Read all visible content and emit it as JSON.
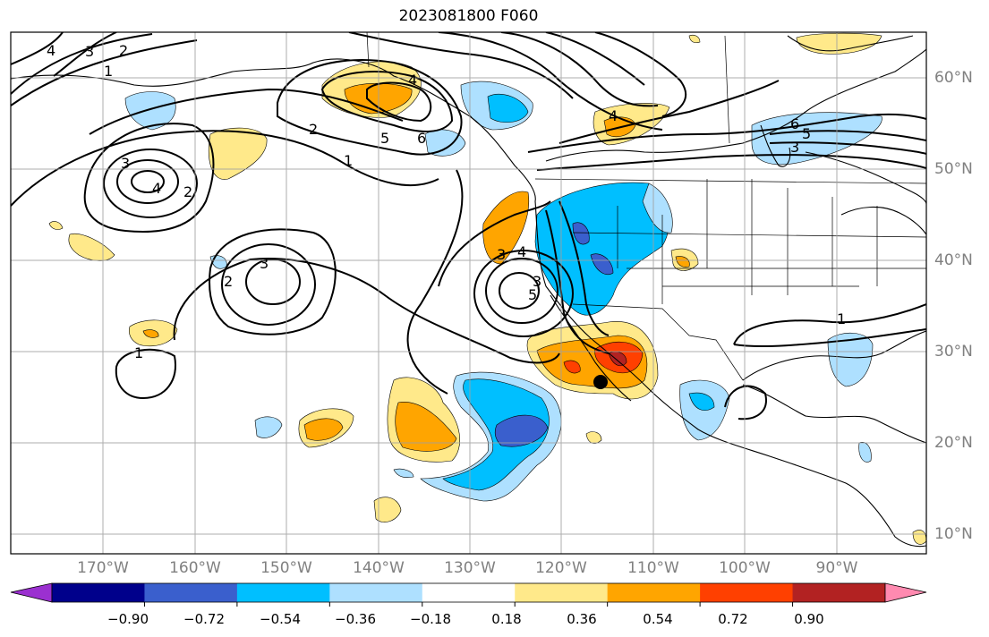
{
  "title": "2023081800 F060",
  "lon_labels": [
    "170°W",
    "160°W",
    "150°W",
    "140°W",
    "130°W",
    "120°W",
    "110°W",
    "100°W",
    "90°W"
  ],
  "lat_labels": [
    "60°N",
    "50°N",
    "40°N",
    "30°N",
    "20°N",
    "10°N"
  ],
  "colorbar": {
    "colors": [
      "#9b30d0",
      "#00008b",
      "#3a5fcd",
      "#00bfff",
      "#aee0ff",
      "#ffffff",
      "#ffe98a",
      "#ffa500",
      "#ff4000",
      "#b22222",
      "#ff8ab0"
    ],
    "tick_labels": [
      "−0.90",
      "−0.72",
      "−0.54",
      "−0.36",
      "−0.18",
      "0.18",
      "0.36",
      "0.54",
      "0.72",
      "0.90"
    ]
  },
  "contour_labels": [
    "4",
    "3",
    "2",
    "1",
    "3",
    "4",
    "2",
    "2",
    "3",
    "1",
    "2",
    "4",
    "5",
    "6",
    "1",
    "4",
    "3",
    "4",
    "5",
    "3",
    "6",
    "5",
    "3",
    "1"
  ]
}
